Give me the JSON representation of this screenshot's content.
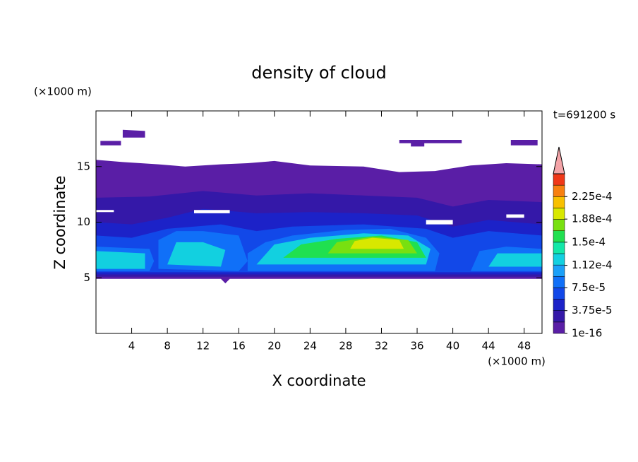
{
  "chart_data": {
    "type": "contour",
    "title": "density of cloud",
    "xlabel": "X coordinate",
    "ylabel": "Z coordinate",
    "xunit": "(×1000 m)",
    "yunit": "(×1000 m)",
    "time_label": "t=691200 s",
    "xlim": [
      0,
      50
    ],
    "ylim": [
      0,
      20
    ],
    "xticks": [
      4,
      8,
      12,
      16,
      20,
      24,
      28,
      32,
      36,
      40,
      44,
      48
    ],
    "yticks": [
      5,
      10,
      15
    ],
    "levels": [
      1e-16,
      1.875e-05,
      3.75e-05,
      5.625e-05,
      7.5e-05,
      9.375e-05,
      0.0001125,
      0.00013125,
      0.00015,
      0.00016875,
      0.0001875,
      0.00020625,
      0.000225,
      0.00024375
    ],
    "colors": [
      "#5a1ea6",
      "#3418a8",
      "#1c22c8",
      "#1248e8",
      "#1070f8",
      "#1aa0f8",
      "#12d0e0",
      "#12e8a8",
      "#20e050",
      "#78e010",
      "#d8e800",
      "#f8c000",
      "#f88010",
      "#f03818"
    ],
    "colorbar_lim": [
      1e-16,
      0.0002625
    ],
    "over_color": "#f4a4a8",
    "colorbar_ticks": [
      {
        "value": 1e-16,
        "label": "1e-16"
      },
      {
        "value": 3.75e-05,
        "label": "3.75e-5"
      },
      {
        "value": 7.5e-05,
        "label": "7.5e-5"
      },
      {
        "value": 0.000112,
        "label": "1.12e-4"
      },
      {
        "value": 0.00015,
        "label": "1.5e-4"
      },
      {
        "value": 0.000188,
        "label": "1.88e-4"
      },
      {
        "value": 0.000225,
        "label": "2.25e-4"
      }
    ]
  }
}
